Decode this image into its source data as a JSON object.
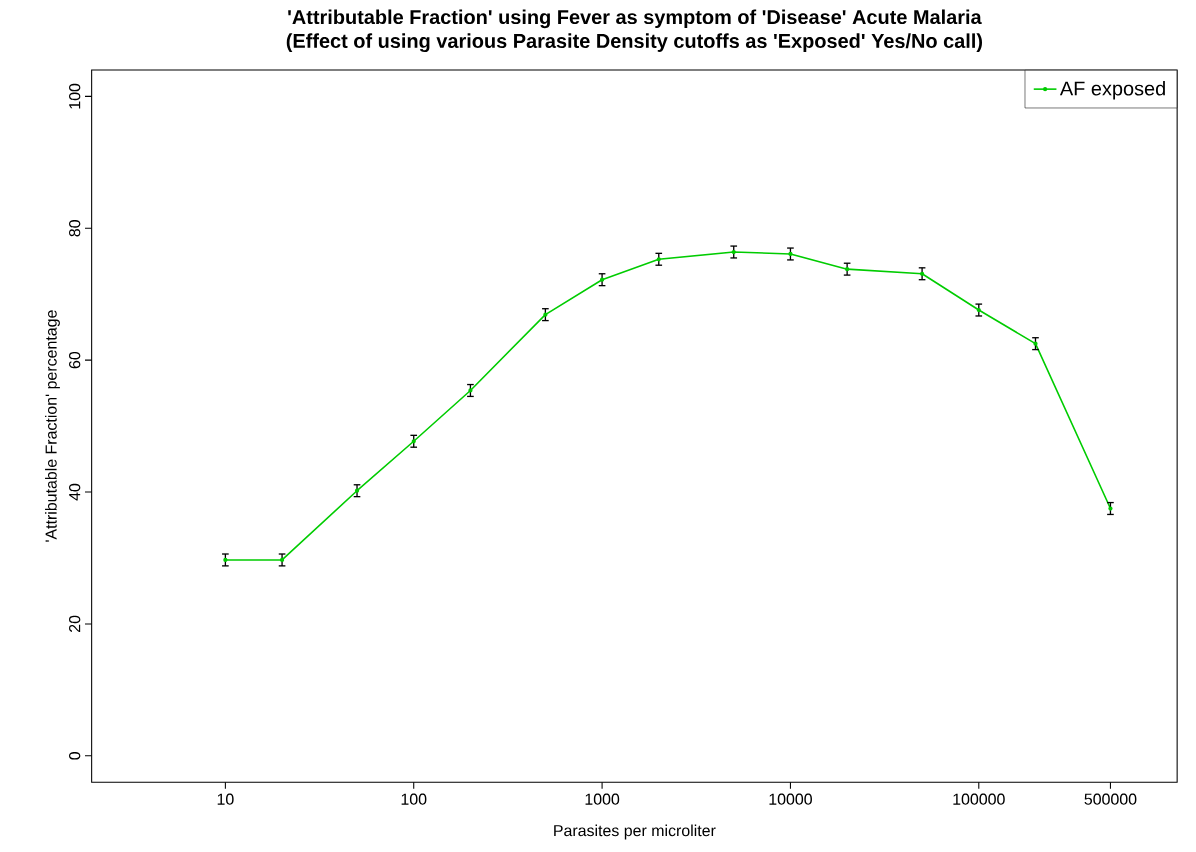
{
  "chart_data": {
    "type": "line",
    "title": "'Attributable Fraction' using Fever as symptom of 'Disease' Acute Malaria",
    "subtitle": "(Effect of using various Parasite Density cutoffs as 'Exposed' Yes/No call)",
    "xlabel": "Parasites per microliter",
    "ylabel": "'Attributable Fraction' percentage",
    "x": [
      10,
      20,
      50,
      100,
      200,
      500,
      1000,
      2000,
      5000,
      10000,
      20000,
      50000,
      100000,
      200000,
      500000
    ],
    "series": [
      {
        "name": "AF exposed",
        "color": "#00cc00",
        "values": [
          29.7,
          29.7,
          40.2,
          47.7,
          55.4,
          66.9,
          72.2,
          75.3,
          76.4,
          76.1,
          73.8,
          73.1,
          67.6,
          62.5,
          37.5
        ],
        "errors": [
          0.9,
          0.9,
          0.9,
          0.9,
          0.9,
          0.9,
          0.9,
          0.9,
          0.9,
          0.9,
          0.9,
          0.9,
          0.9,
          0.9,
          0.9
        ]
      }
    ],
    "log": "x",
    "xlim": [
      1.95,
      1130000
    ],
    "xticks": [
      10,
      100,
      1000,
      10000,
      100000,
      500000
    ],
    "ylim": [
      -4,
      104
    ],
    "yticks": [
      0,
      20,
      40,
      60,
      80,
      100
    ],
    "legend": "top right",
    "marker": "circle",
    "grid": false
  }
}
